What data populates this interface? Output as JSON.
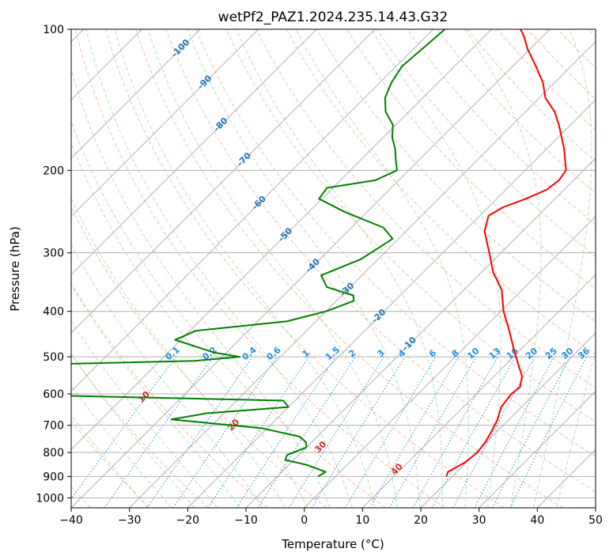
{
  "chart_data": {
    "type": "line",
    "title": "wetPf2_PAZ1.2024.235.14.43.G32",
    "xlabel": "Temperature (°C)",
    "ylabel": "Pressure (hPa)",
    "xlim": [
      -40,
      50
    ],
    "ylim": [
      1050,
      100
    ],
    "y_scale": "log",
    "x_ticks": [
      "−40",
      "−30",
      "−20",
      "−10",
      "0",
      "10",
      "20",
      "30",
      "40",
      "50"
    ],
    "y_ticks": [
      "100",
      "200",
      "300",
      "400",
      "500",
      "600",
      "700",
      "800",
      "900",
      "1000"
    ],
    "grid": true,
    "skew": true,
    "colors": {
      "temperature": "#ff0000",
      "dewpoint": "#008000",
      "dry_adiabat": "#f4a582",
      "moist_adiabat": "#a6d9a6",
      "mixing_ratio": "#1f8fe0",
      "isotherm_label": "#1f77b4",
      "isohume_label": "#1f8fe0",
      "moist_label": "#d62728",
      "grid": "#b0b0b0"
    },
    "series": [
      {
        "key": "temperature",
        "points": [
          [
            19.0,
            900
          ],
          [
            18.5,
            880
          ],
          [
            19.8,
            840
          ],
          [
            20.2,
            800
          ],
          [
            19.8,
            760
          ],
          [
            19.0,
            720
          ],
          [
            18.0,
            680
          ],
          [
            16.5,
            640
          ],
          [
            16.0,
            600
          ],
          [
            16.3,
            580
          ],
          [
            14.8,
            550
          ],
          [
            12.2,
            520
          ],
          [
            8.6,
            480
          ],
          [
            4.8,
            440
          ],
          [
            0.5,
            400
          ],
          [
            -3.5,
            360
          ],
          [
            -8.0,
            330
          ],
          [
            -12.0,
            300
          ],
          [
            -16.5,
            270
          ],
          [
            -18.5,
            250
          ],
          [
            -17.5,
            240
          ],
          [
            -15.0,
            230
          ],
          [
            -13.0,
            220
          ],
          [
            -12.5,
            210
          ],
          [
            -13.0,
            200
          ],
          [
            -17.0,
            180
          ],
          [
            -22.0,
            160
          ],
          [
            -25.0,
            150
          ],
          [
            -29.0,
            140
          ],
          [
            -32.0,
            130
          ],
          [
            -36.0,
            120
          ],
          [
            -40.5,
            110
          ],
          [
            -43.0,
            104
          ],
          [
            -45.0,
            100
          ]
        ]
      },
      {
        "key": "dewpoint",
        "points": [
          [
            -3.0,
            900
          ],
          [
            -2.5,
            880
          ],
          [
            -7.0,
            850
          ],
          [
            -11.5,
            830
          ],
          [
            -12.0,
            810
          ],
          [
            -10.0,
            780
          ],
          [
            -11.0,
            760
          ],
          [
            -13.0,
            740
          ],
          [
            -21.0,
            710
          ],
          [
            -38.0,
            680
          ],
          [
            -33.0,
            660
          ],
          [
            -20.0,
            640
          ],
          [
            -22.0,
            620
          ],
          [
            -75.0,
            600
          ],
          [
            -72.0,
            520
          ],
          [
            -44.0,
            510
          ],
          [
            -37.0,
            500
          ],
          [
            -42.0,
            490
          ],
          [
            -51.0,
            460
          ],
          [
            -49.0,
            440
          ],
          [
            -35.0,
            420
          ],
          [
            -30.0,
            400
          ],
          [
            -27.0,
            380
          ],
          [
            -28.0,
            370
          ],
          [
            -34.0,
            355
          ],
          [
            -37.0,
            335
          ],
          [
            -33.0,
            310
          ],
          [
            -32.0,
            295
          ],
          [
            -31.0,
            280
          ],
          [
            -34.5,
            265
          ],
          [
            -44.0,
            245
          ],
          [
            -50.5,
            230
          ],
          [
            -51.0,
            218
          ],
          [
            -44.0,
            210
          ],
          [
            -42.0,
            200
          ],
          [
            -44.0,
            190
          ],
          [
            -46.0,
            180
          ],
          [
            -48.5,
            170
          ],
          [
            -50.5,
            160
          ],
          [
            -54.0,
            150
          ],
          [
            -56.5,
            140
          ],
          [
            -58.0,
            130
          ],
          [
            -59.0,
            120
          ],
          [
            -58.5,
            110
          ],
          [
            -58.0,
            100
          ]
        ]
      }
    ],
    "isotherm_labels": [
      "-100",
      "-90",
      "-80",
      "-70",
      "-60",
      "-50",
      "-40",
      "-30",
      "-20",
      "-10"
    ],
    "mixing_ratio_labels": [
      "0.1",
      "0.2",
      "0.4",
      "0.6",
      "1",
      "1.5",
      "2",
      "3",
      "4",
      "6",
      "8",
      "10",
      "13",
      "16",
      "20",
      "25",
      "30",
      "36"
    ],
    "moist_labels": [
      "0",
      "10",
      "20",
      "30",
      "40"
    ]
  }
}
